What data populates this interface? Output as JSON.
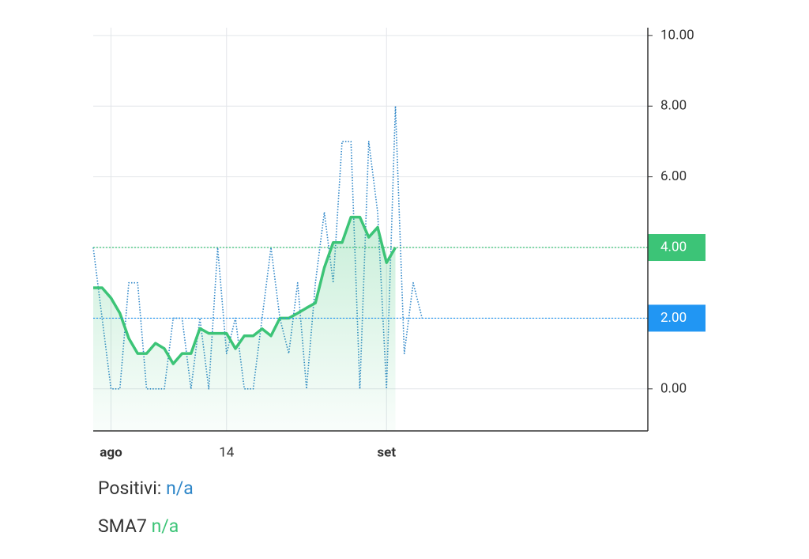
{
  "chart_data": {
    "type": "line",
    "categories": [
      null,
      null,
      "ago",
      null,
      null,
      null,
      null,
      null,
      null,
      null,
      null,
      null,
      null,
      null,
      null,
      "14",
      null,
      null,
      null,
      null,
      null,
      null,
      null,
      null,
      null,
      null,
      null,
      null,
      null,
      null,
      null,
      null,
      null,
      "set",
      null,
      null,
      null,
      null
    ],
    "series": [
      {
        "name": "Positivi:",
        "value_text": "n/a",
        "color": "#2e86c8",
        "style": "dotted",
        "values": [
          4,
          2,
          0,
          0,
          3,
          3,
          0,
          0,
          0,
          2,
          2,
          0,
          2,
          0,
          4,
          1,
          2,
          0,
          0,
          2,
          4,
          2,
          1,
          3,
          0,
          3,
          5,
          3,
          7,
          7,
          0,
          7,
          5,
          0,
          8,
          1,
          3,
          2
        ]
      },
      {
        "name": "SMA7",
        "value_text": "n/a",
        "color": "#3cc477",
        "style": "solid",
        "area": true,
        "values": [
          2.86,
          2.86,
          2.57,
          2.14,
          1.43,
          1.0,
          1.0,
          1.29,
          1.14,
          0.71,
          1.0,
          1.0,
          1.71,
          1.57,
          1.57,
          1.57,
          1.14,
          1.5,
          1.5,
          1.7,
          1.5,
          2.0,
          2.0,
          2.14,
          2.29,
          2.43,
          3.43,
          4.14,
          4.14,
          4.86,
          4.86,
          4.29,
          4.57,
          3.57,
          4.0,
          null,
          null,
          null
        ]
      }
    ],
    "ylim": [
      -1.19,
      10.22
    ],
    "yticks": [
      {
        "value": 0,
        "label": "0.00"
      },
      {
        "value": 2,
        "label": "2.00"
      },
      {
        "value": 4,
        "label": "4.00"
      },
      {
        "value": 6,
        "label": "6.00"
      },
      {
        "value": 8,
        "label": "8.00"
      },
      {
        "value": 10,
        "label": "10.00"
      }
    ],
    "price_lines": [
      {
        "value": 4,
        "label": "4.00",
        "color": "#3cc477"
      },
      {
        "value": 2,
        "label": "2.00",
        "color": "#2196f3"
      }
    ],
    "grid": true
  }
}
